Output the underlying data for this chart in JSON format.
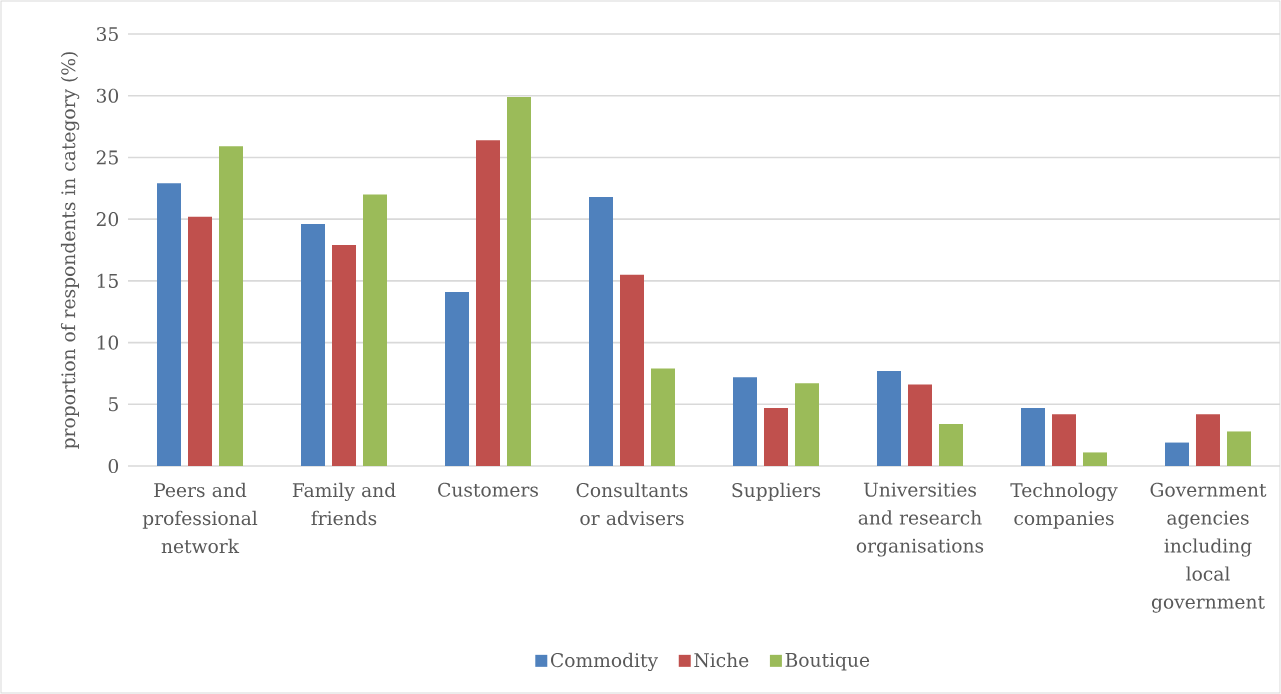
{
  "chart_data": {
    "type": "bar",
    "ylabel": "proportion of respondents in category (%)",
    "categories": [
      "Peers and professional network",
      "Family and friends",
      "Customers",
      "Consultants or advisers",
      "Suppliers",
      "Universities and research organisations",
      "Technology companies",
      "Government agencies including local government"
    ],
    "series": [
      {
        "name": "Commodity",
        "color": "#4f81bd",
        "values": [
          22.9,
          19.6,
          14.1,
          21.8,
          7.2,
          7.7,
          4.7,
          1.9
        ]
      },
      {
        "name": "Niche",
        "color": "#c0504d",
        "values": [
          20.2,
          17.9,
          26.4,
          15.5,
          4.7,
          6.6,
          4.2,
          4.2
        ]
      },
      {
        "name": "Boutique",
        "color": "#9bbb59",
        "values": [
          25.9,
          22.0,
          29.9,
          7.9,
          6.7,
          3.4,
          1.1,
          2.8
        ]
      }
    ],
    "ylim": [
      0,
      35
    ],
    "yticks": [
      0,
      5,
      10,
      15,
      20,
      25,
      30,
      35
    ],
    "grid": "y",
    "legend": "bottom"
  }
}
